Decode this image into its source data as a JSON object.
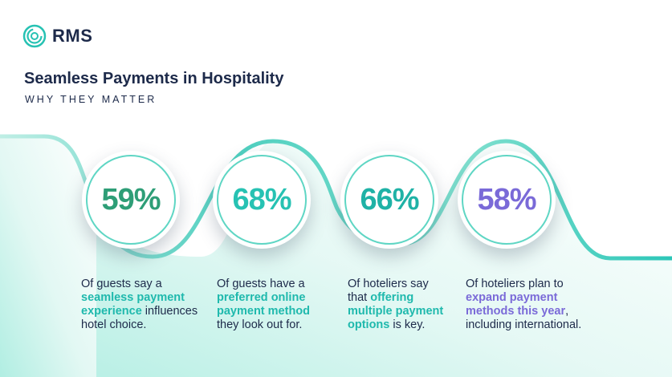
{
  "brand": {
    "name": "RMS"
  },
  "header": {
    "title": "Seamless Payments in Hospitality",
    "subtitle": "WHY THEY MATTER"
  },
  "colors": {
    "teal": "#1fb9ad",
    "green": "#2e9e77",
    "purple": "#7a6ad8",
    "navy": "#1d2a4a"
  },
  "stats": [
    {
      "value": "59%",
      "color": "#2e9e77",
      "lines": [
        [
          "Of guests say a"
        ],
        [
          "",
          "seamless payment",
          ""
        ],
        [
          "",
          "experience",
          " influences"
        ],
        [
          "hotel choice."
        ]
      ]
    },
    {
      "value": "68%",
      "color": "#27c2b3",
      "lines": [
        [
          "Of guests have a"
        ],
        [
          "",
          "preferred online",
          ""
        ],
        [
          "",
          "payment method",
          ""
        ],
        [
          "they look out for."
        ]
      ]
    },
    {
      "value": "66%",
      "color": "#1fb2a6",
      "lines": [
        [
          "Of hoteliers say"
        ],
        [
          "that ",
          "offering",
          ""
        ],
        [
          "",
          "multiple payment",
          ""
        ],
        [
          "",
          "options",
          " is key."
        ]
      ]
    },
    {
      "value": "58%",
      "color": "#7a6ad8",
      "lines": [
        [
          "Of hoteliers plan to"
        ],
        [
          "",
          "expand payment",
          ""
        ],
        [
          "",
          "methods this year",
          ","
        ],
        [
          "including international."
        ]
      ]
    }
  ]
}
